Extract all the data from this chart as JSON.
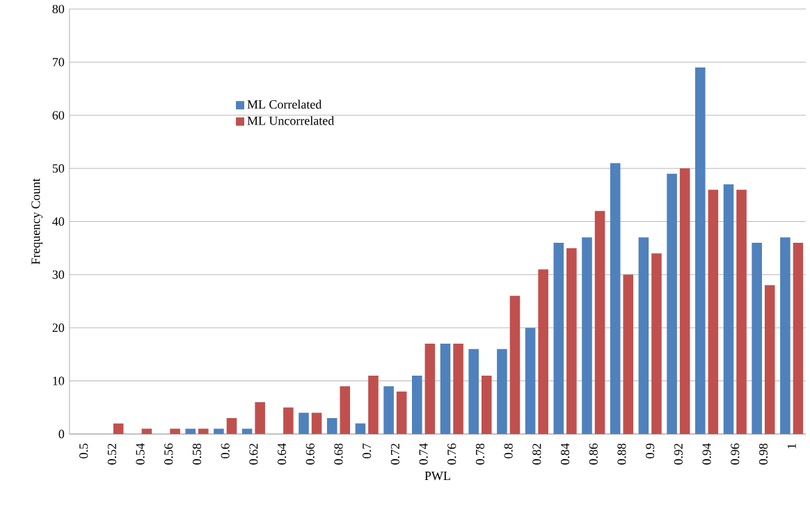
{
  "chart_data": {
    "type": "bar",
    "xlabel": "PWL",
    "ylabel": "Frequency Count",
    "categories": [
      "0.5",
      "0.52",
      "0.54",
      "0.56",
      "0.58",
      "0.6",
      "0.62",
      "0.64",
      "0.66",
      "0.68",
      "0.7",
      "0.72",
      "0.74",
      "0.76",
      "0.78",
      "0.8",
      "0.82",
      "0.84",
      "0.86",
      "0.88",
      "0.9",
      "0.92",
      "0.94",
      "0.96",
      "0.98",
      "1"
    ],
    "series": [
      {
        "name": "ML Correlated",
        "color": "#4f81bd",
        "values": [
          0,
          0,
          0,
          0,
          1,
          1,
          1,
          0,
          4,
          3,
          2,
          9,
          11,
          17,
          16,
          16,
          20,
          36,
          37,
          51,
          37,
          49,
          69,
          47,
          36,
          37
        ]
      },
      {
        "name": "ML Uncorrelated",
        "color": "#c0504d",
        "values": [
          0,
          2,
          1,
          1,
          1,
          3,
          6,
          5,
          4,
          9,
          11,
          8,
          17,
          17,
          11,
          26,
          31,
          35,
          42,
          30,
          34,
          50,
          46,
          46,
          28,
          36
        ]
      }
    ],
    "ylim": [
      0,
      80
    ],
    "yticks": [
      0,
      10,
      20,
      30,
      40,
      50,
      60,
      70,
      80
    ],
    "grid": "y",
    "legend": "top left"
  }
}
